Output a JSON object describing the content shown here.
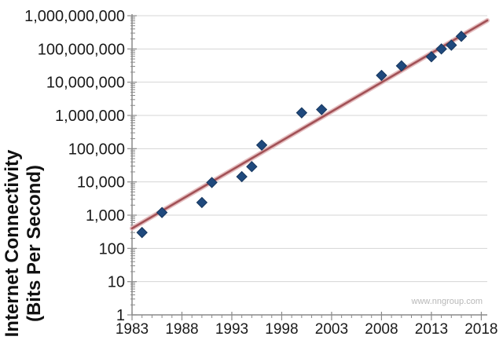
{
  "chart_data": {
    "type": "scatter",
    "title": "",
    "ylabel_lines": [
      "Internet Connectivity",
      "(Bits Per Second)"
    ],
    "xlabel": "",
    "y_scale": "log",
    "y_range": [
      1,
      1000000000
    ],
    "y_tick_labels": [
      "1",
      "10",
      "100",
      "1,000",
      "10,000",
      "100,000",
      "1,000,000",
      "10,000,000",
      "100,000,000",
      "1,000,000,000"
    ],
    "x_range": [
      1983,
      2018.6
    ],
    "x_tick_years": [
      1983,
      1988,
      1993,
      1998,
      2003,
      2008,
      2013,
      2018
    ],
    "grid": "horizontal-only",
    "legend": "none",
    "marker": "diamond",
    "points": [
      {
        "year": 1984,
        "bps": 300
      },
      {
        "year": 1986,
        "bps": 1200
      },
      {
        "year": 1990,
        "bps": 2400
      },
      {
        "year": 1991,
        "bps": 9600
      },
      {
        "year": 1994,
        "bps": 14400
      },
      {
        "year": 1995,
        "bps": 28800
      },
      {
        "year": 1996,
        "bps": 128000
      },
      {
        "year": 2000,
        "bps": 1200000
      },
      {
        "year": 2002,
        "bps": 1500000
      },
      {
        "year": 2008,
        "bps": 16000000
      },
      {
        "year": 2010,
        "bps": 31000000
      },
      {
        "year": 2013,
        "bps": 58000000
      },
      {
        "year": 2014,
        "bps": 100000000
      },
      {
        "year": 2015,
        "bps": 130000000
      },
      {
        "year": 2016,
        "bps": 240000000
      }
    ],
    "trendline": {
      "start": {
        "year": 1983,
        "bps": 400
      },
      "end": {
        "year": 2018.6,
        "bps": 720000000
      }
    },
    "watermark": "www.nngroup.com",
    "colors": {
      "marker_fill": "#1F497D",
      "marker_stroke": "#17375E",
      "trend_core": "#A25156",
      "trend_halo": "#E3B8BA",
      "gridline": "#D4D4D4",
      "axis": "#8A8A8A",
      "label": "#1A1A1A",
      "watermark": "#B8B8B8",
      "background": "#FFFFFF"
    }
  }
}
